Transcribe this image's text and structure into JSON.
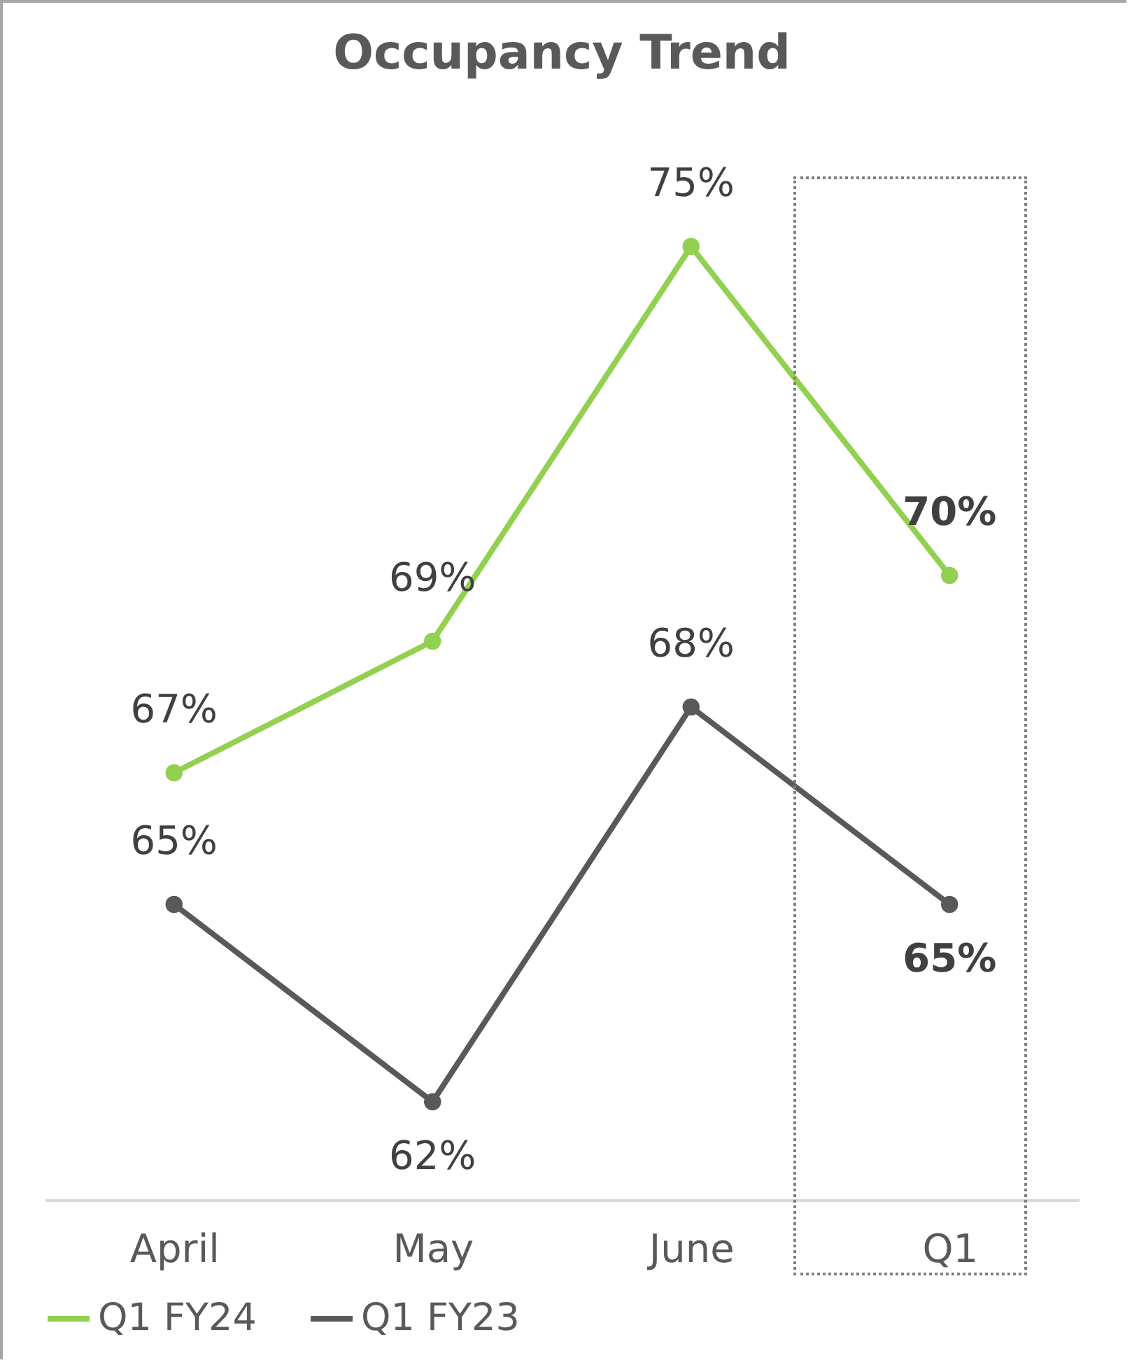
{
  "chart_data": {
    "type": "line",
    "title": "Occupancy Trend",
    "categories": [
      "April",
      "May",
      "June",
      "Q1"
    ],
    "series": [
      {
        "name": "Q1 FY24",
        "color": "#92d050",
        "values": [
          67,
          69,
          75,
          70
        ],
        "value_labels": [
          "67%",
          "69%",
          "75%",
          "70%"
        ]
      },
      {
        "name": "Q1 FY23",
        "color": "#595959",
        "values": [
          65,
          62,
          68,
          65
        ],
        "value_labels": [
          "65%",
          "62%",
          "68%",
          "65%"
        ]
      }
    ],
    "marker": "circle",
    "line_style": "solid",
    "legend": "bottom",
    "grid": false
  }
}
